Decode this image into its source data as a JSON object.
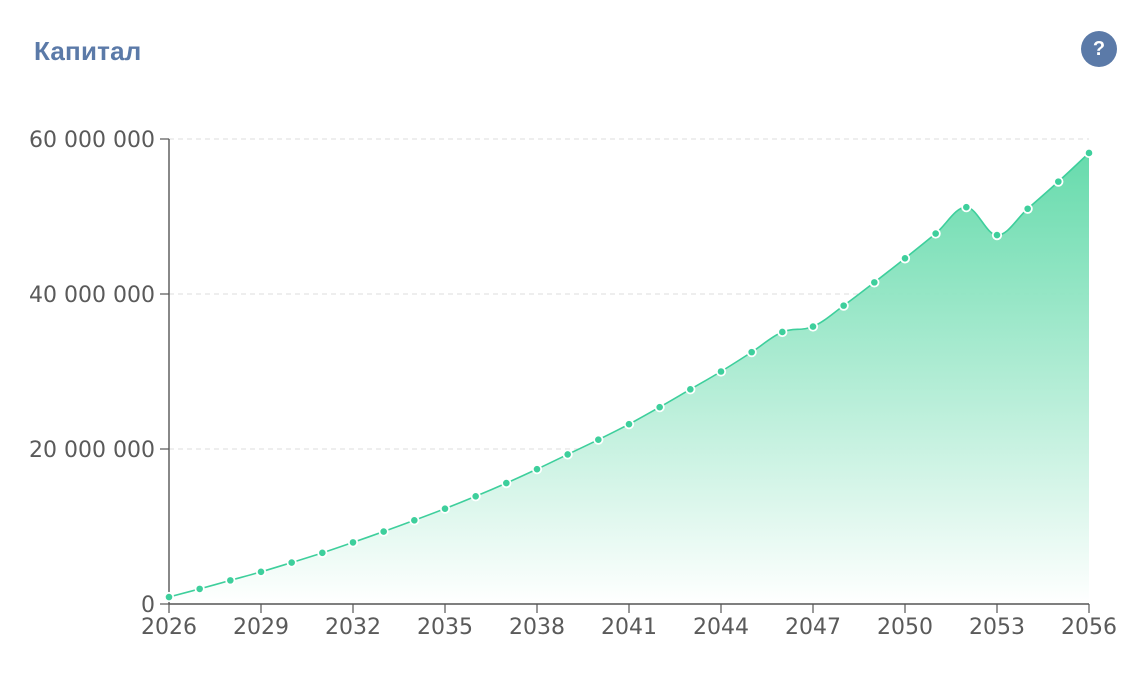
{
  "header": {
    "title": "Капитал",
    "help_label": "?"
  },
  "colors": {
    "title": "#5b7aa8",
    "help_button": "#5b7aa8",
    "line": "#3ecf9c",
    "area_top": "#5fd9a8",
    "point_fill": "#3ecf9c",
    "grid": "#e3e3e3",
    "axis": "#555555"
  },
  "chart_data": {
    "type": "area",
    "title": "Капитал",
    "xlabel": "",
    "ylabel": "",
    "x": [
      2026,
      2027,
      2028,
      2029,
      2030,
      2031,
      2032,
      2033,
      2034,
      2035,
      2036,
      2037,
      2038,
      2039,
      2040,
      2041,
      2042,
      2043,
      2044,
      2045,
      2046,
      2047,
      2048,
      2049,
      2050,
      2051,
      2052,
      2053,
      2054,
      2055,
      2056
    ],
    "series": [
      {
        "values": [
          900000,
          1950000,
          3050000,
          4150000,
          5350000,
          6600000,
          7950000,
          9350000,
          10800000,
          12300000,
          13900000,
          15600000,
          17400000,
          19300000,
          21200000,
          23200000,
          25400000,
          27700000,
          30000000,
          32500000,
          35100000,
          35800000,
          38500000,
          41500000,
          44600000,
          47800000,
          51200000,
          47600000,
          51000000,
          54500000,
          58200000
        ]
      }
    ],
    "xlim": [
      2026,
      2056
    ],
    "ylim": [
      0,
      60000000
    ],
    "x_ticks": [
      "2026",
      "2029",
      "2032",
      "2035",
      "2038",
      "2041",
      "2044",
      "2047",
      "2050",
      "2053",
      "2056"
    ],
    "y_ticks": [
      "0",
      "20 000 000",
      "40 000 000",
      "60 000 000"
    ],
    "grid": "horizontal-dashed",
    "legend": "none"
  }
}
